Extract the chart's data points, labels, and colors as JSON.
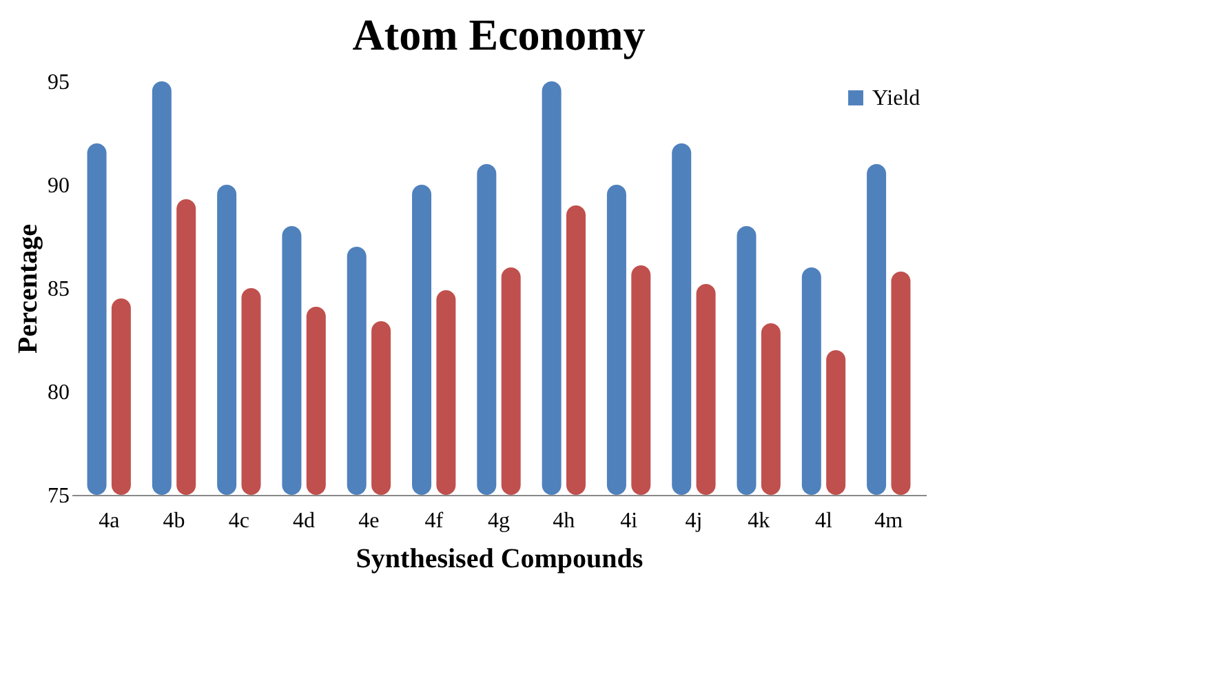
{
  "chart_data": {
    "type": "bar",
    "title": "Atom Economy",
    "xlabel": "Synthesised Compounds",
    "ylabel": "Percentage",
    "categories": [
      "4a",
      "4b",
      "4c",
      "4d",
      "4e",
      "4f",
      "4g",
      "4h",
      "4i",
      "4j",
      "4k",
      "4l",
      "4m"
    ],
    "series": [
      {
        "name": "Yield",
        "color": "#4f81bd",
        "values": [
          92,
          95,
          90,
          88,
          87,
          90,
          91,
          95,
          90,
          92,
          88,
          86,
          91
        ]
      },
      {
        "color": "#c0504d",
        "values": [
          84.5,
          89.3,
          85,
          84.1,
          83.4,
          84.9,
          86,
          89,
          86.1,
          85.2,
          83.3,
          82,
          85.8
        ]
      }
    ],
    "ylim": [
      75,
      95
    ],
    "yticks": [
      75,
      80,
      85,
      90,
      95
    ],
    "legend": "top right"
  }
}
